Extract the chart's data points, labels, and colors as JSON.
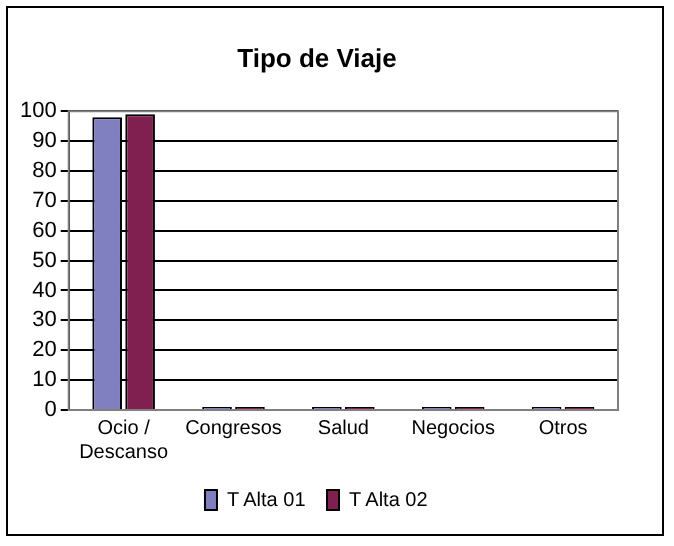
{
  "chart_data": {
    "type": "bar",
    "title": "Tipo de Viaje",
    "categories": [
      "Ocio / Descanso",
      "Congresos",
      "Salud",
      "Negocios",
      "Otros"
    ],
    "series": [
      {
        "name": "T Alta 01",
        "color": "#8080c0",
        "values": [
          98,
          1,
          1,
          1,
          1
        ]
      },
      {
        "name": "T Alta 02",
        "color": "#802050",
        "values": [
          99,
          1,
          1,
          1,
          1
        ]
      }
    ],
    "ylim": [
      0,
      100
    ],
    "yticks": [
      0,
      10,
      20,
      30,
      40,
      50,
      60,
      70,
      80,
      90,
      100
    ],
    "grid": "y",
    "legend": "bottom"
  }
}
